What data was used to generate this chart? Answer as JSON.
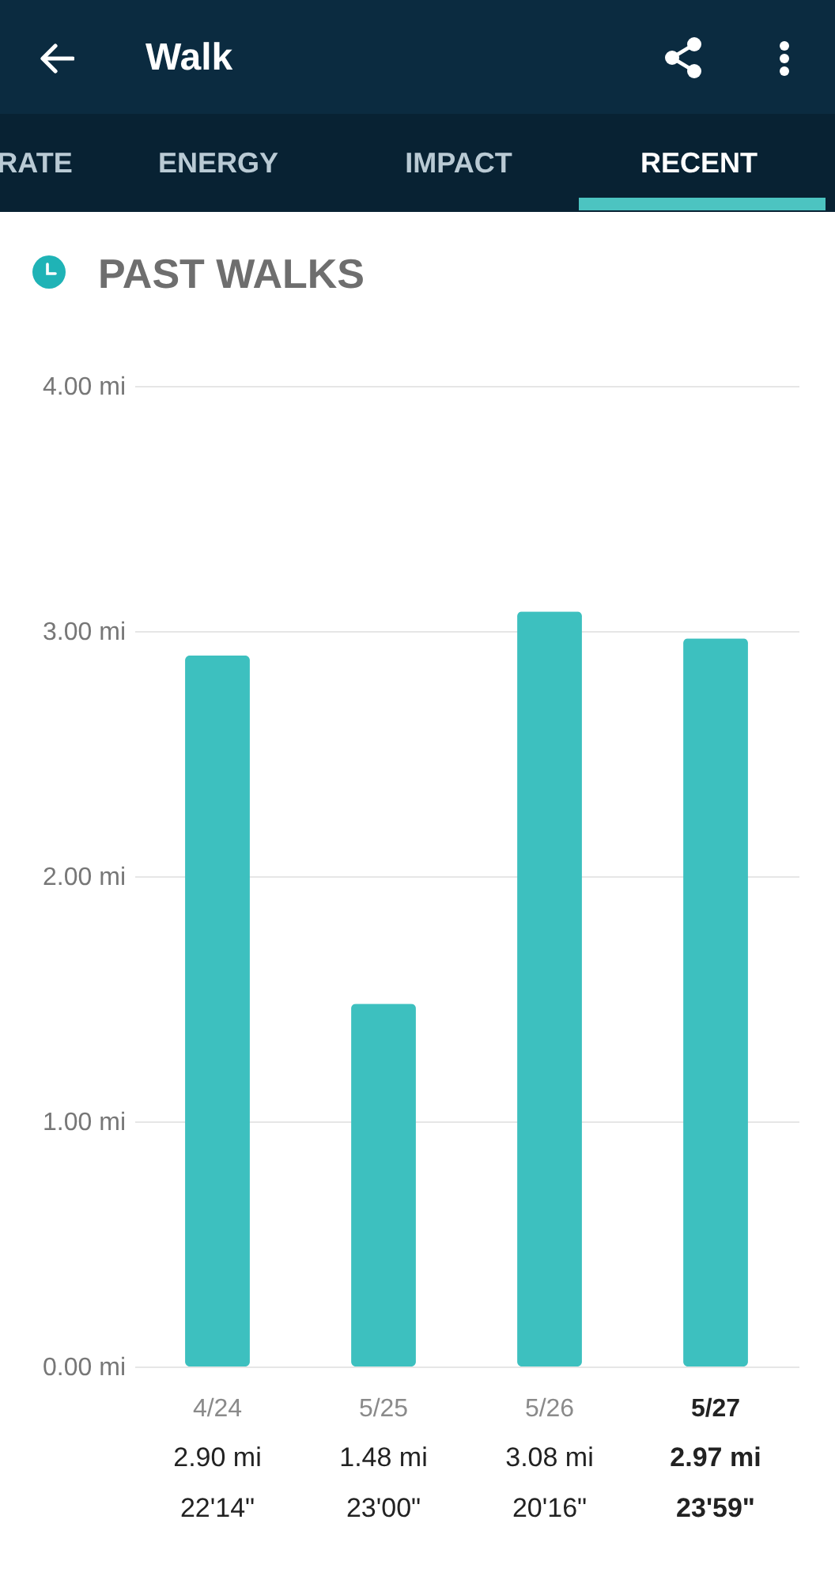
{
  "chart_data": {
    "type": "bar",
    "title": "PAST WALKS",
    "annotations": [
      "Walk",
      "RATE",
      "ENERGY",
      "IMPACT",
      "RECENT",
      "22'14\"",
      "23'00\"",
      "20'16\"",
      "23'59\""
    ],
    "categories": [
      "4/24",
      "5/25",
      "5/26",
      "5/27"
    ],
    "values": [
      2.9,
      1.48,
      3.08,
      2.97
    ],
    "value_labels": [
      "2.90 mi",
      "1.48 mi",
      "3.08 mi",
      "2.97 mi"
    ],
    "color": "#3dc0bf",
    "ylim": [
      0,
      4
    ],
    "yticks": [
      {
        "value": 0,
        "label": "0.00 mi"
      },
      {
        "value": 1,
        "label": "1.00 mi"
      },
      {
        "value": 2,
        "label": "2.00 mi"
      },
      {
        "value": 3,
        "label": "3.00 mi"
      },
      {
        "value": 4,
        "label": "4.00 mi"
      }
    ],
    "grid": "y"
  }
}
